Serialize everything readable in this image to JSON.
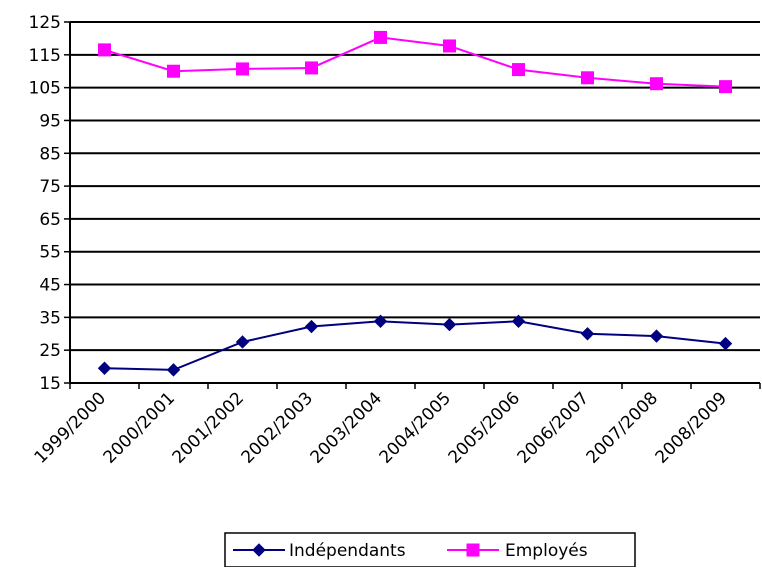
{
  "chart_data": {
    "type": "line",
    "categories": [
      "1999/2000",
      "2000/2001",
      "2001/2002",
      "2002/2003",
      "2003/2004",
      "2004/2005",
      "2005/2006",
      "2006/2007",
      "2007/2008",
      "2008/2009"
    ],
    "series": [
      {
        "name": "Indépendants",
        "values": [
          19.5,
          19.0,
          27.5,
          32.2,
          33.8,
          32.8,
          33.8,
          30.0,
          29.3,
          27.0
        ],
        "color": "#000080",
        "marker": "diamond"
      },
      {
        "name": "Employés",
        "values": [
          116.5,
          110.0,
          110.7,
          111.0,
          120.3,
          117.7,
          110.5,
          108.0,
          106.2,
          105.3
        ],
        "color": "#ff00ff",
        "marker": "square"
      }
    ],
    "yticks": [
      15,
      25,
      35,
      45,
      55,
      65,
      75,
      85,
      95,
      105,
      115,
      125
    ],
    "ylim": [
      15,
      125
    ],
    "grid": true,
    "legend_position": "bottom"
  }
}
